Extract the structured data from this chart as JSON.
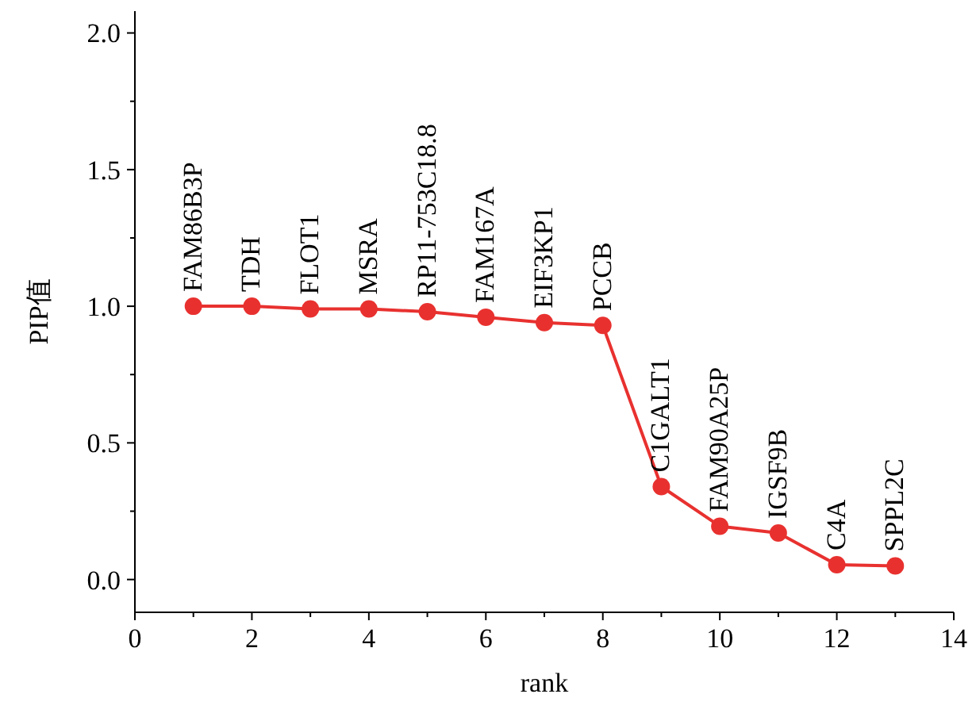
{
  "chart_data": {
    "type": "line",
    "xlabel": "rank",
    "ylabel": "PIP值",
    "x": [
      1,
      2,
      3,
      4,
      5,
      6,
      7,
      8,
      9,
      10,
      11,
      12,
      13
    ],
    "series": [
      {
        "color": "#e8312f",
        "values": [
          1.0,
          1.0,
          0.99,
          0.99,
          0.98,
          0.96,
          0.94,
          0.93,
          0.34,
          0.195,
          0.17,
          0.054,
          0.05
        ]
      }
    ],
    "xlim": [
      0,
      14
    ],
    "xticks": [
      0,
      2,
      4,
      6,
      8,
      10,
      12,
      14
    ],
    "ylim": [
      -0.12,
      2.08
    ],
    "yticks": [
      {
        "value": 0,
        "label": "0.0"
      },
      {
        "value": 0.5,
        "label": "0.5"
      },
      {
        "value": 1,
        "label": "1.0"
      },
      {
        "value": 1.5,
        "label": "1.5"
      },
      {
        "value": 2,
        "label": "2.0"
      }
    ],
    "marker": "circle",
    "line_style": "solid",
    "grid": false,
    "annotations": [
      {
        "text": "FAM86B3P",
        "x": 1,
        "y": 1.0
      },
      {
        "text": "TDH",
        "x": 2,
        "y": 1.0
      },
      {
        "text": "FLOT1",
        "x": 3,
        "y": 0.99
      },
      {
        "text": "MSRA",
        "x": 4,
        "y": 0.99
      },
      {
        "text": "RP11-753C18.8",
        "x": 5,
        "y": 0.98
      },
      {
        "text": "FAM167A",
        "x": 6,
        "y": 0.96
      },
      {
        "text": "EIF3KP1",
        "x": 7,
        "y": 0.94
      },
      {
        "text": "PCCB",
        "x": 8,
        "y": 0.93
      },
      {
        "text": "C1GALT1",
        "x": 9,
        "y": 0.34
      },
      {
        "text": "FAM90A25P",
        "x": 10,
        "y": 0.195
      },
      {
        "text": "IGSF9B",
        "x": 11,
        "y": 0.17
      },
      {
        "text": "C4A",
        "x": 12,
        "y": 0.054
      },
      {
        "text": "SPPL2C",
        "x": 13,
        "y": 0.05
      }
    ]
  }
}
